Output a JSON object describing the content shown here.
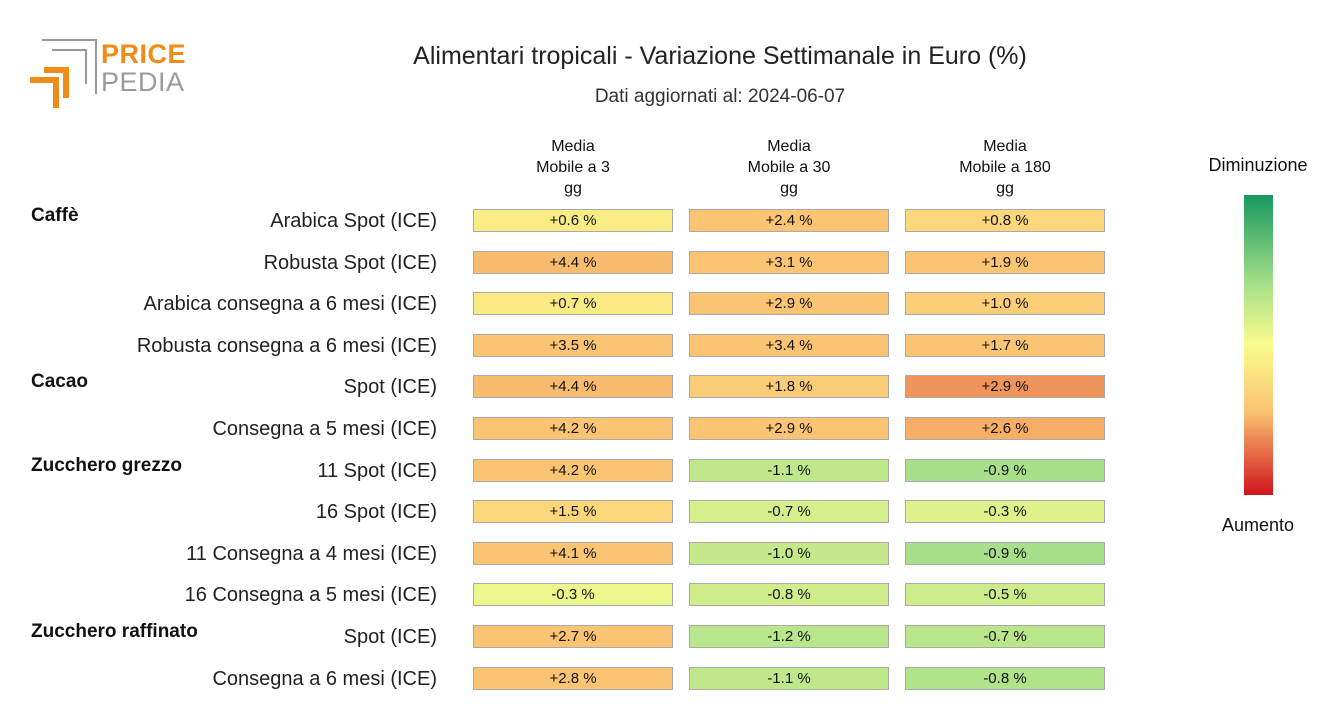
{
  "logo": {
    "line1": "PRICE",
    "line2": "PEDIA"
  },
  "title": "Alimentari tropicali - Variazione Settimanale in Euro (%)",
  "subtitle": "Dati aggiornati al: 2024-06-07",
  "colors": {
    "increase": "#d0141c",
    "neutral": "#fafb8c",
    "decrease": "#17985e",
    "mid_increase": "#fbc472",
    "mid_decrease": "#a8e08a",
    "logo_orange": "#ef8c17",
    "logo_gray": "#9a9a9a"
  },
  "legend": {
    "top": "Diminuzione",
    "bottom": "Aumento"
  },
  "chart_data": {
    "type": "heatmap",
    "title": "Alimentari tropicali - Variazione Settimanale in Euro (%)",
    "subtitle": "Dati aggiornati al: 2024-06-07",
    "columns": [
      "Media\nMobile a 3\ngg",
      "Media\nMobile a 30\ngg",
      "Media\nMobile a 180\ngg"
    ],
    "groups": [
      "Caffè",
      "Cacao",
      "Zucchero grezzo",
      "Zucchero raffinato"
    ],
    "rows": [
      {
        "group": "Caffè",
        "label": "Arabica Spot (ICE)",
        "values": [
          0.6,
          2.4,
          0.8
        ],
        "text": [
          "+0.6 %",
          "+2.4 %",
          "+0.8 %"
        ]
      },
      {
        "group": "",
        "label": "Robusta Spot (ICE)",
        "values": [
          4.4,
          3.1,
          1.9
        ],
        "text": [
          "+4.4 %",
          "+3.1 %",
          "+1.9 %"
        ]
      },
      {
        "group": "",
        "label": "Arabica consegna a 6 mesi (ICE)",
        "values": [
          0.7,
          2.9,
          1.0
        ],
        "text": [
          "+0.7 %",
          "+2.9 %",
          "+1.0 %"
        ]
      },
      {
        "group": "",
        "label": "Robusta consegna a 6 mesi (ICE)",
        "values": [
          3.5,
          3.4,
          1.7
        ],
        "text": [
          "+3.5 %",
          "+3.4 %",
          "+1.7 %"
        ]
      },
      {
        "group": "Cacao",
        "label": "Spot (ICE)",
        "values": [
          4.4,
          1.8,
          2.9
        ],
        "text": [
          "+4.4 %",
          "+1.8 %",
          "+2.9 %"
        ]
      },
      {
        "group": "",
        "label": "Consegna a 5 mesi (ICE)",
        "values": [
          4.2,
          2.9,
          2.6
        ],
        "text": [
          "+4.2 %",
          "+2.9 %",
          "+2.6 %"
        ]
      },
      {
        "group": "Zucchero grezzo",
        "label": "11 Spot (ICE)",
        "values": [
          4.2,
          -1.1,
          -0.9
        ],
        "text": [
          "+4.2 %",
          "-1.1 %",
          "-0.9 %"
        ]
      },
      {
        "group": "",
        "label": "16 Spot (ICE)",
        "values": [
          1.5,
          -0.7,
          -0.3
        ],
        "text": [
          "+1.5 %",
          "-0.7 %",
          "-0.3 %"
        ]
      },
      {
        "group": "",
        "label": "11 Consegna a 4 mesi (ICE)",
        "values": [
          4.1,
          -1.0,
          -0.9
        ],
        "text": [
          "+4.1 %",
          "-1.0 %",
          "-0.9 %"
        ]
      },
      {
        "group": "",
        "label": "16 Consegna a 5 mesi (ICE)",
        "values": [
          -0.3,
          -0.8,
          -0.5
        ],
        "text": [
          "-0.3 %",
          "-0.8 %",
          "-0.5 %"
        ]
      },
      {
        "group": "Zucchero raffinato",
        "label": "Spot (ICE)",
        "values": [
          2.7,
          -1.2,
          -0.7
        ],
        "text": [
          "+2.7 %",
          "-1.2 %",
          "-0.7 %"
        ]
      },
      {
        "group": "",
        "label": "Consegna a 6 mesi (ICE)",
        "values": [
          2.8,
          -1.1,
          -0.8
        ],
        "text": [
          "+2.8 %",
          "-1.1 %",
          "-0.8 %"
        ]
      }
    ]
  }
}
